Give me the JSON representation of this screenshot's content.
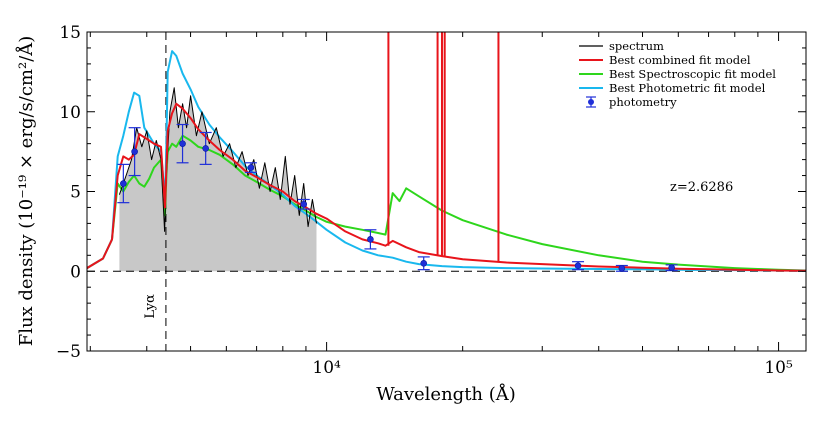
{
  "chart_data": {
    "type": "line",
    "xlabel": "Wavelength (Å)",
    "ylabel": "Flux density (10⁻¹⁹ × erg/s/cm²/Å)",
    "xscale": "log",
    "xlim": [
      2950,
      115000
    ],
    "ylim": [
      -5,
      15
    ],
    "x_ticks": [
      10000,
      100000
    ],
    "x_tick_labels": [
      "10⁴",
      "10⁵"
    ],
    "y_ticks": [
      -5,
      0,
      5,
      10,
      15
    ],
    "y_tick_labels": [
      "−5",
      "0",
      "5",
      "10",
      "15"
    ],
    "annotation": "z=2.6286",
    "lya_label": "Lyα",
    "lya_x": 4410,
    "legend_position": "top-right",
    "legend": [
      "spectrum",
      "Best combined fit model",
      "Best Spectroscopic fit model",
      "Best Photometric fit model",
      "photometry"
    ],
    "colors": {
      "spectrum": "#000000",
      "combined": "#e8141b",
      "spectroscopic": "#2ed61c",
      "photometric": "#19b8ee",
      "photometry": "#1f2fd8",
      "fill": "#c8c8c8"
    },
    "spectrum_range": [
      3480,
      9500
    ],
    "series": [
      {
        "name": "Best combined fit model",
        "x": [
          2950,
          3200,
          3350,
          3450,
          3550,
          3650,
          3750,
          3850,
          3950,
          4050,
          4150,
          4300,
          4390,
          4420,
          4450,
          4550,
          4650,
          4800,
          5000,
          5200,
          5500,
          5800,
          6200,
          6600,
          7000,
          7500,
          8000,
          8500,
          9000,
          9500,
          10000,
          11000,
          12000,
          13000,
          13500,
          14000,
          15000,
          16000,
          18000,
          20000,
          25000,
          30000,
          40000,
          50000,
          60000,
          70000,
          80000,
          90000,
          100000,
          115000
        ],
        "y": [
          0.2,
          0.8,
          2.0,
          6.0,
          7.2,
          7.0,
          7.3,
          8.6,
          8.4,
          8.2,
          8.0,
          7.8,
          4.0,
          6.5,
          8.8,
          9.9,
          10.5,
          10.2,
          9.6,
          8.9,
          8.2,
          7.6,
          7.0,
          6.3,
          5.9,
          5.4,
          5.0,
          4.4,
          4.0,
          3.6,
          3.3,
          2.5,
          2.0,
          1.75,
          1.6,
          1.9,
          1.5,
          1.2,
          0.95,
          0.75,
          0.55,
          0.45,
          0.3,
          0.22,
          0.16,
          0.12,
          0.1,
          0.07,
          0.05,
          0.03
        ]
      },
      {
        "name": "Best Spectroscopic fit model",
        "x": [
          2950,
          3200,
          3350,
          3450,
          3550,
          3650,
          3750,
          3850,
          3950,
          4050,
          4150,
          4300,
          4390,
          4420,
          4450,
          4550,
          4650,
          4800,
          5000,
          5200,
          5500,
          5800,
          6200,
          6600,
          7000,
          7500,
          8000,
          8500,
          9000,
          9500,
          10000,
          11000,
          12000,
          13000,
          13500,
          14000,
          14500,
          15000,
          16000,
          18000,
          20000,
          25000,
          30000,
          40000,
          50000,
          60000,
          70000,
          80000,
          90000,
          100000,
          115000
        ],
        "y": [
          0.2,
          0.8,
          2.0,
          5.5,
          5.0,
          5.6,
          6.0,
          5.5,
          5.3,
          5.8,
          6.5,
          7.0,
          3.5,
          6.0,
          7.5,
          8.0,
          7.8,
          8.5,
          8.2,
          7.8,
          7.6,
          7.3,
          6.7,
          6.0,
          5.6,
          5.1,
          4.7,
          4.2,
          3.8,
          3.4,
          3.1,
          2.8,
          2.6,
          2.4,
          2.3,
          4.9,
          4.4,
          5.2,
          4.7,
          3.8,
          3.2,
          2.3,
          1.7,
          1.0,
          0.6,
          0.42,
          0.3,
          0.2,
          0.14,
          0.1,
          0.05
        ]
      },
      {
        "name": "Best Photometric fit model",
        "x": [
          2950,
          3200,
          3350,
          3450,
          3550,
          3650,
          3750,
          3850,
          3950,
          4050,
          4150,
          4300,
          4390,
          4420,
          4450,
          4550,
          4650,
          4800,
          5000,
          5200,
          5500,
          5800,
          6200,
          6600,
          7000,
          7500,
          8000,
          8500,
          9000,
          9500,
          10000,
          11000,
          12000,
          13000,
          14000,
          15000,
          16000,
          18000,
          20000,
          25000,
          30000,
          40000,
          50000,
          60000,
          70000,
          80000,
          90000,
          100000,
          115000
        ],
        "y": [
          0.2,
          0.8,
          2.0,
          7.2,
          8.5,
          10.0,
          11.2,
          11.0,
          9.0,
          8.5,
          8.0,
          7.5,
          4.5,
          8.0,
          12.5,
          13.8,
          13.5,
          12.4,
          11.4,
          10.3,
          9.2,
          8.4,
          7.5,
          6.6,
          6.0,
          5.4,
          4.8,
          4.1,
          3.6,
          3.1,
          2.6,
          1.8,
          1.3,
          1.0,
          0.85,
          0.6,
          0.45,
          0.32,
          0.26,
          0.2,
          0.17,
          0.14,
          0.12,
          0.1,
          0.08,
          0.07,
          0.06,
          0.05,
          0.03
        ]
      },
      {
        "name": "spectrum",
        "x": [
          3480,
          3600,
          3700,
          3800,
          3900,
          4000,
          4100,
          4200,
          4300,
          4380,
          4420,
          4500,
          4600,
          4700,
          4800,
          4900,
          5000,
          5150,
          5300,
          5500,
          5700,
          5900,
          6100,
          6300,
          6500,
          6700,
          6900,
          7100,
          7300,
          7500,
          7700,
          7900,
          8100,
          8300,
          8500,
          8700,
          8900,
          9100,
          9300,
          9500
        ],
        "y": [
          4.8,
          6.0,
          7.0,
          9.0,
          7.8,
          8.8,
          7.0,
          8.2,
          7.0,
          2.5,
          6.0,
          10.0,
          11.5,
          9.0,
          10.5,
          9.0,
          11.0,
          8.5,
          10.0,
          8.0,
          9.0,
          7.2,
          8.0,
          6.5,
          7.5,
          6.0,
          7.0,
          5.2,
          6.8,
          5.0,
          6.5,
          4.5,
          7.2,
          4.2,
          6.0,
          3.5,
          5.5,
          2.8,
          4.5,
          3.0
        ]
      }
    ],
    "spikes": [
      {
        "x": 13700,
        "y_base": 1.6
      },
      {
        "x": 17600,
        "y_base": 1.0
      },
      {
        "x": 18000,
        "y_base": 0.98
      },
      {
        "x": 18250,
        "y_base": 0.96
      },
      {
        "x": 24000,
        "y_base": 0.55
      }
    ],
    "photometry": {
      "name": "photometry",
      "points": [
        {
          "x": 3550,
          "y": 5.5,
          "err": 1.2
        },
        {
          "x": 3760,
          "y": 7.5,
          "err": 1.5
        },
        {
          "x": 4800,
          "y": 8.0,
          "err": 1.2
        },
        {
          "x": 5400,
          "y": 7.7,
          "err": 1.0
        },
        {
          "x": 6800,
          "y": 6.5,
          "err": 0.3
        },
        {
          "x": 8900,
          "y": 4.2,
          "err": 0.3
        },
        {
          "x": 12500,
          "y": 2.0,
          "err": 0.6
        },
        {
          "x": 16400,
          "y": 0.5,
          "err": 0.4
        },
        {
          "x": 36000,
          "y": 0.35,
          "err": 0.25
        },
        {
          "x": 45000,
          "y": 0.18,
          "err": 0.18
        },
        {
          "x": 58000,
          "y": 0.22,
          "err": 0.18
        }
      ]
    }
  }
}
